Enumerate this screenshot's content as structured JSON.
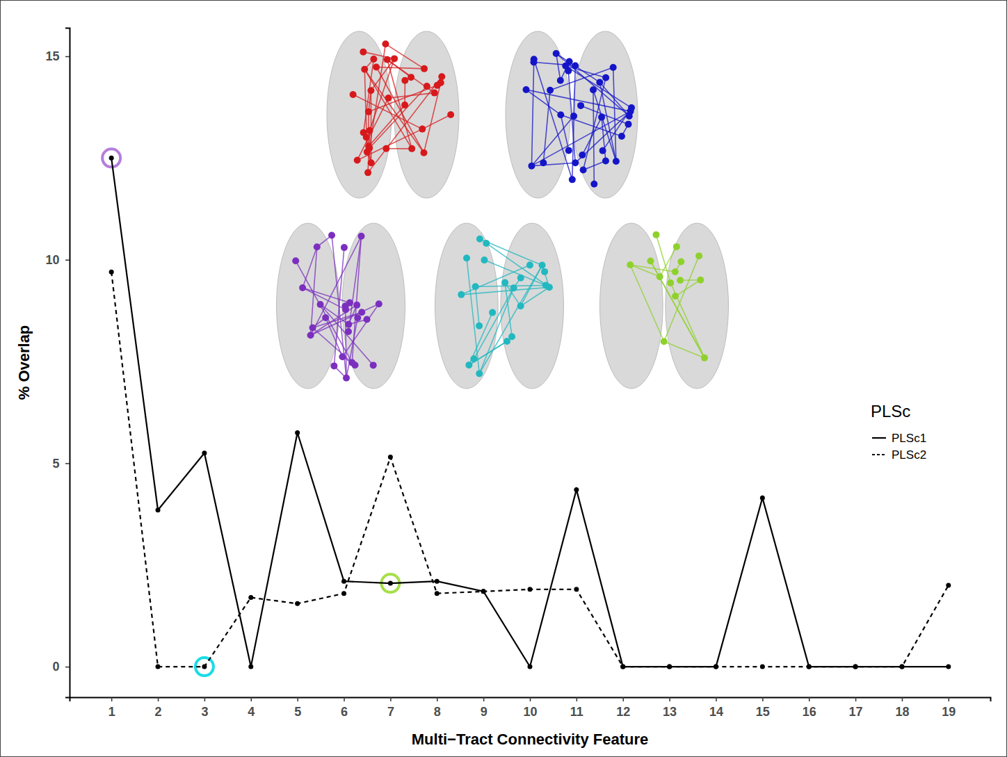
{
  "chart_data": {
    "type": "line",
    "x_label": "Multi−Tract Connectivity Feature",
    "y_label": "% Overlap",
    "legend_title": "PLSc",
    "x": [
      1,
      2,
      3,
      4,
      5,
      6,
      7,
      8,
      9,
      10,
      11,
      12,
      13,
      14,
      15,
      16,
      17,
      18,
      19
    ],
    "series": [
      {
        "name": "PLSc1",
        "color": "#000000",
        "line_style": "solid",
        "marker": "circle",
        "values": [
          12.5,
          3.85,
          5.25,
          0,
          5.75,
          2.1,
          2.05,
          2.1,
          1.85,
          0,
          4.35,
          0,
          0,
          0,
          4.15,
          0,
          0,
          0,
          0
        ]
      },
      {
        "name": "PLSc2",
        "color": "#000000",
        "line_style": "dashed",
        "marker": "circle",
        "values": [
          9.7,
          0,
          0,
          1.7,
          1.55,
          1.8,
          5.15,
          1.8,
          1.85,
          1.9,
          1.9,
          0,
          0,
          0,
          0,
          0,
          0,
          0,
          2.0
        ]
      }
    ],
    "xlim": [
      0.1,
      19.9
    ],
    "ylim": [
      -0.75,
      15.7
    ],
    "xticks": [
      1,
      2,
      3,
      4,
      5,
      6,
      7,
      8,
      9,
      10,
      11,
      12,
      13,
      14,
      15,
      16,
      17,
      18,
      19
    ],
    "yticks": [
      0,
      5,
      10,
      15
    ],
    "grid": false,
    "legend": "right"
  }
}
